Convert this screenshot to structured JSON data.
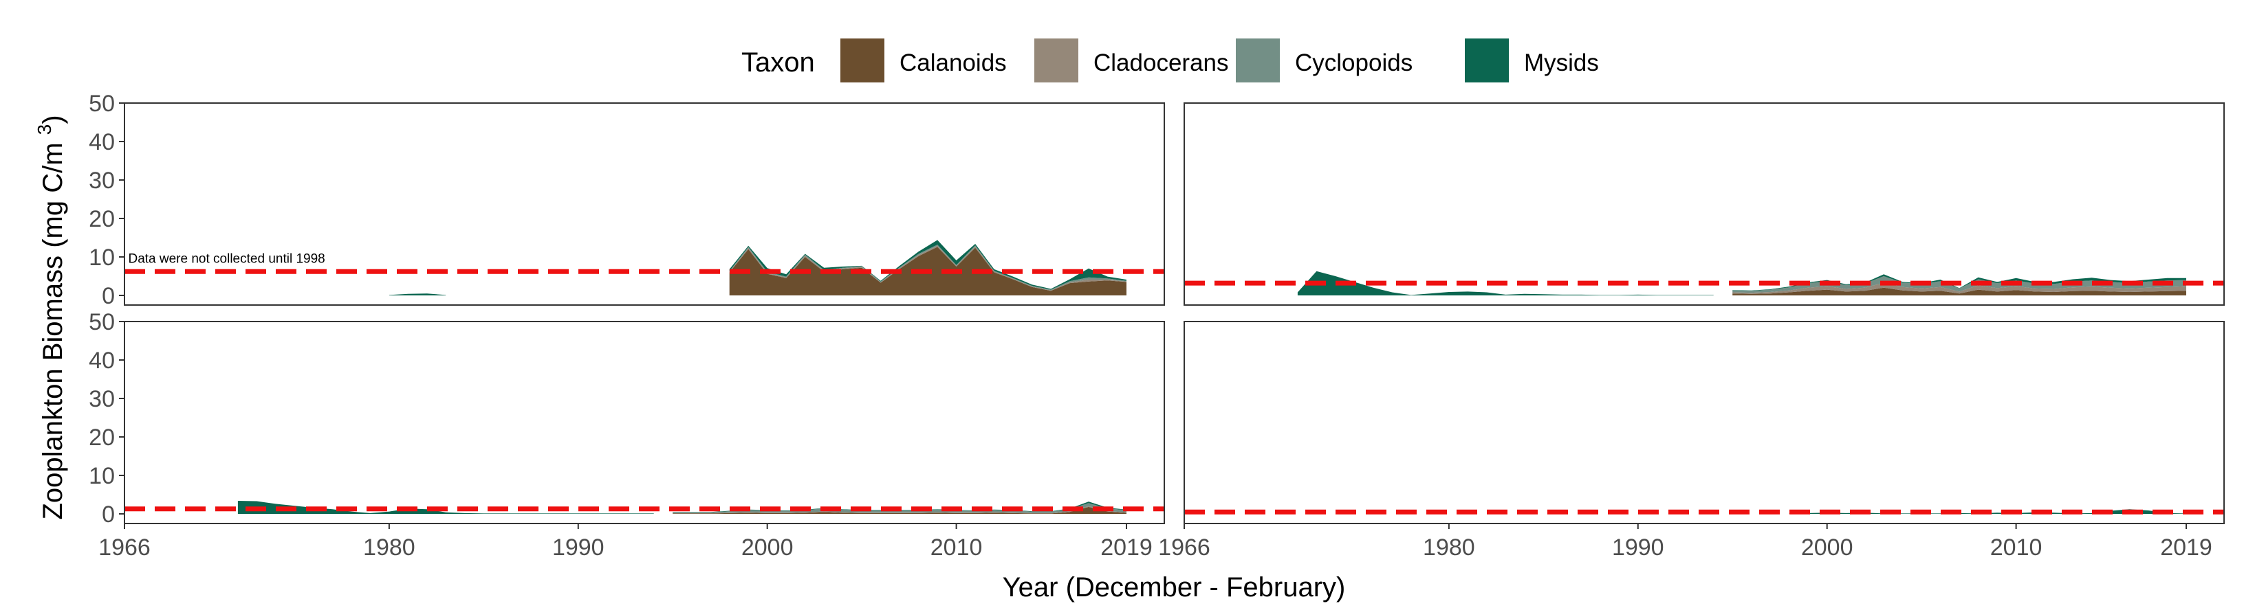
{
  "chart_data": {
    "type": "area",
    "stacked": true,
    "legend": {
      "title": "Taxon",
      "position": "top",
      "entries": [
        {
          "name": "Calanoids",
          "color": "#6B4E2E"
        },
        {
          "name": "Cladocerans",
          "color": "#958879"
        },
        {
          "name": "Cyclopoids",
          "color": "#738F86"
        },
        {
          "name": "Mysids",
          "color": "#0B6650"
        }
      ]
    },
    "xlabel": "Year (December - February)",
    "ylabel": "Zooplankton Biomass (mg C/m",
    "ylabel_superscript": "3",
    "ylabel_close": ")",
    "xlim": [
      1966,
      2021
    ],
    "ylim": [
      -2.5,
      50
    ],
    "x_ticks": [
      "1966",
      "1980",
      "1990",
      "2000",
      "2010",
      "2019"
    ],
    "x_tick_values": [
      1966,
      1980,
      1990,
      2000,
      2010,
      2019
    ],
    "y_ticks": [
      "0",
      "10",
      "20",
      "30",
      "40",
      "50"
    ],
    "y_tick_values": [
      0,
      10,
      20,
      30,
      40,
      50
    ],
    "grid": false,
    "reference_line": {
      "style": "dashed",
      "color": "#EE1111"
    },
    "panels": [
      {
        "position": "top-left",
        "reference_value": 6.2,
        "annotation": {
          "text": "Data were not collected until 1998",
          "x": 1966.2,
          "y": 8.5
        },
        "segments": [
          {
            "x": [
              1980,
              1981,
              1982,
              1983
            ],
            "calanoids": [
              0,
              0,
              0,
              0
            ],
            "cladocerans": [
              0,
              0,
              0,
              0
            ],
            "cyclopoids": [
              0,
              0,
              0,
              0
            ],
            "mysids": [
              0.1,
              0.4,
              0.5,
              0.1
            ]
          },
          {
            "x": [
              1998,
              1999,
              2000,
              2001,
              2002,
              2003,
              2004,
              2005,
              2006,
              2007,
              2008,
              2009,
              2010,
              2011,
              2012,
              2013,
              2014,
              2015,
              2016,
              2017,
              2018,
              2019
            ],
            "calanoids": [
              6.0,
              12.0,
              5.6,
              4.5,
              10.0,
              6.2,
              6.8,
              7.2,
              3.3,
              6.9,
              10.2,
              12.6,
              7.5,
              12.4,
              6.0,
              4.2,
              2.2,
              1.2,
              3.2,
              3.6,
              3.9,
              3.5
            ],
            "cladocerans": [
              0.1,
              0.3,
              0.2,
              0.2,
              0.3,
              0.2,
              0.2,
              0.2,
              0.1,
              0.2,
              0.3,
              0.3,
              0.2,
              0.3,
              0.2,
              0.1,
              0.1,
              0.1,
              0.2,
              0.5,
              0.2,
              0.1
            ],
            "cyclopoids": [
              0.2,
              0.3,
              0.3,
              0.2,
              0.3,
              0.2,
              0.2,
              0.2,
              0.2,
              0.2,
              0.3,
              0.3,
              0.2,
              0.3,
              0.2,
              0.2,
              0.2,
              0.2,
              0.3,
              0.6,
              0.3,
              0.2
            ],
            "mysids": [
              0.5,
              0.3,
              1.0,
              0.6,
              0.2,
              0.6,
              0.3,
              0.1,
              0.2,
              0.4,
              0.6,
              1.2,
              1.2,
              0.4,
              0.4,
              0.4,
              0.3,
              0.2,
              0.5,
              2.3,
              0.5,
              0.3
            ]
          }
        ]
      },
      {
        "position": "top-right",
        "reference_value": 3.2,
        "annotation": null,
        "segments": [
          {
            "x": [
              1972,
              1973,
              1974,
              1975,
              1976,
              1977,
              1978,
              1979,
              1980,
              1981,
              1982,
              1983,
              1984,
              1985,
              1986,
              1987,
              1988,
              1989,
              1990,
              1991,
              1992,
              1993,
              1994
            ],
            "calanoids": [
              0,
              0,
              0,
              0,
              0,
              0,
              0,
              0,
              0,
              0,
              0,
              0,
              0,
              0,
              0,
              0,
              0,
              0,
              0,
              0,
              0,
              0,
              0
            ],
            "cladocerans": [
              0,
              0,
              0,
              0,
              0,
              0,
              0,
              0,
              0,
              0,
              0,
              0,
              0,
              0,
              0,
              0,
              0,
              0,
              0,
              0,
              0,
              0,
              0
            ],
            "cyclopoids": [
              0,
              0,
              0,
              0,
              0,
              0,
              0,
              0,
              0,
              0,
              0,
              0,
              0,
              0,
              0,
              0,
              0,
              0,
              0,
              0,
              0,
              0,
              0
            ],
            "mysids": [
              0.8,
              6.3,
              5.0,
              3.5,
              2.0,
              0.8,
              0.1,
              0.5,
              0.9,
              1.0,
              0.8,
              0.2,
              0.4,
              0.3,
              0.2,
              0.2,
              0.1,
              0.1,
              0.2,
              0.1,
              0.1,
              0.1,
              0.1
            ]
          },
          {
            "x": [
              1995,
              1996,
              1997,
              1998,
              1999,
              2000,
              2001,
              2002,
              2003,
              2004,
              2005,
              2006,
              2007,
              2008,
              2009,
              2010,
              2011,
              2012,
              2013,
              2014,
              2015,
              2016,
              2017,
              2018,
              2019
            ],
            "calanoids": [
              0.5,
              0.4,
              0.5,
              0.8,
              1.2,
              1.5,
              1.0,
              1.2,
              2.0,
              1.3,
              1.0,
              1.2,
              0.5,
              1.5,
              1.0,
              1.4,
              1.0,
              0.9,
              1.1,
              1.2,
              1.0,
              0.9,
              1.0,
              1.1,
              1.2
            ],
            "cladocerans": [
              0.3,
              0.3,
              0.4,
              0.5,
              0.8,
              0.9,
              0.7,
              0.8,
              1.3,
              0.9,
              0.8,
              1.0,
              0.5,
              1.1,
              0.9,
              1.0,
              0.8,
              0.8,
              1.0,
              1.1,
              1.0,
              0.9,
              1.0,
              1.1,
              1.2
            ],
            "cyclopoids": [
              0.5,
              0.5,
              0.6,
              0.8,
              1.2,
              1.3,
              1.0,
              1.1,
              1.7,
              1.1,
              1.2,
              1.5,
              0.8,
              1.6,
              1.3,
              1.5,
              1.3,
              1.3,
              1.5,
              1.6,
              1.5,
              1.4,
              1.6,
              1.7,
              1.6
            ],
            "mysids": [
              0.1,
              0.1,
              0.1,
              0.2,
              0.2,
              0.3,
              0.2,
              0.2,
              0.5,
              0.2,
              0.2,
              0.4,
              0.1,
              0.5,
              0.3,
              0.6,
              0.4,
              0.5,
              0.6,
              0.7,
              0.5,
              0.5,
              0.5,
              0.6,
              0.5
            ]
          }
        ]
      },
      {
        "position": "bottom-left",
        "reference_value": 1.3,
        "annotation": null,
        "segments": [
          {
            "x": [
              1972,
              1973,
              1974,
              1975,
              1976,
              1977,
              1978,
              1979,
              1980,
              1981,
              1982,
              1983,
              1984,
              1985,
              1986,
              1987,
              1988,
              1989,
              1990,
              1991,
              1992,
              1993,
              1994
            ],
            "calanoids": [
              0,
              0,
              0,
              0,
              0,
              0,
              0,
              0,
              0,
              0,
              0,
              0,
              0,
              0,
              0,
              0,
              0,
              0,
              0,
              0,
              0,
              0,
              0
            ],
            "cladocerans": [
              0,
              0,
              0,
              0,
              0,
              0,
              0,
              0,
              0,
              0,
              0,
              0,
              0,
              0,
              0,
              0,
              0,
              0,
              0,
              0,
              0,
              0,
              0
            ],
            "cyclopoids": [
              0,
              0,
              0,
              0,
              0,
              0,
              0,
              0,
              0,
              0,
              0,
              0,
              0,
              0,
              0,
              0,
              0,
              0,
              0,
              0,
              0,
              0,
              0
            ],
            "mysids": [
              3.4,
              3.3,
              2.6,
              2.1,
              1.6,
              1.2,
              0.6,
              0.2,
              0.6,
              1.4,
              1.2,
              0.4,
              0.2,
              0.1,
              0.1,
              0.1,
              0.1,
              0.1,
              0.1,
              0.1,
              0.1,
              0.1,
              0.1
            ]
          },
          {
            "x": [
              1995,
              1996,
              1997,
              1998,
              1999,
              2000,
              2001,
              2002,
              2003,
              2004,
              2005,
              2006,
              2007,
              2008,
              2009,
              2010,
              2011,
              2012,
              2013,
              2014,
              2015,
              2016,
              2017,
              2018,
              2019
            ],
            "calanoids": [
              0.1,
              0.1,
              0.1,
              0.2,
              0.3,
              0.2,
              0.2,
              0.3,
              0.5,
              0.3,
              0.2,
              0.2,
              0.2,
              0.2,
              0.3,
              0.2,
              0.2,
              0.3,
              0.2,
              0.1,
              0.1,
              0.5,
              1.8,
              0.6,
              0.3
            ],
            "cladocerans": [
              0.1,
              0.1,
              0.1,
              0.1,
              0.1,
              0.1,
              0.1,
              0.1,
              0.1,
              0.1,
              0.1,
              0.1,
              0.1,
              0.1,
              0.1,
              0.1,
              0.1,
              0.1,
              0.1,
              0.1,
              0.1,
              0.1,
              0.2,
              0.1,
              0.1
            ],
            "cyclopoids": [
              0.2,
              0.2,
              0.2,
              0.4,
              0.6,
              0.6,
              0.5,
              0.6,
              0.8,
              0.7,
              0.6,
              0.6,
              0.6,
              0.6,
              0.7,
              0.6,
              0.5,
              0.6,
              0.6,
              0.4,
              0.4,
              0.6,
              0.8,
              0.7,
              0.6
            ],
            "mysids": [
              0.1,
              0.1,
              0.1,
              0.1,
              0.1,
              0.1,
              0.1,
              0.1,
              0.1,
              0.1,
              0.1,
              0.1,
              0.1,
              0.1,
              0.1,
              0.1,
              0.1,
              0.1,
              0.1,
              0.1,
              0.1,
              0.2,
              0.4,
              0.2,
              0.1
            ]
          }
        ]
      },
      {
        "position": "bottom-right",
        "reference_value": 0.5,
        "annotation": null,
        "segments": [
          {
            "x": [
              1998,
              1999,
              2000,
              2001,
              2002,
              2003,
              2004,
              2005,
              2006,
              2007,
              2008,
              2009,
              2010,
              2011,
              2012,
              2013,
              2014,
              2015,
              2016,
              2017,
              2018,
              2019
            ],
            "calanoids": [
              0,
              0,
              0,
              0,
              0,
              0,
              0,
              0,
              0,
              0,
              0,
              0,
              0,
              0,
              0,
              0,
              0,
              0,
              0,
              0,
              0,
              0
            ],
            "cladocerans": [
              0,
              0,
              0,
              0,
              0,
              0,
              0,
              0,
              0,
              0,
              0,
              0,
              0,
              0,
              0,
              0,
              0,
              0,
              0,
              0,
              0,
              0
            ],
            "cyclopoids": [
              0,
              0,
              0,
              0,
              0,
              0,
              0,
              0,
              0,
              0,
              0,
              0,
              0,
              0,
              0,
              0,
              0,
              0,
              0,
              0,
              0,
              0
            ],
            "mysids": [
              0.1,
              0.2,
              0.3,
              0.2,
              0.3,
              0.1,
              0.1,
              0.1,
              0.1,
              0.2,
              0.1,
              0.3,
              0.2,
              0.4,
              0.3,
              0.1,
              0.2,
              0.8,
              1.2,
              0.9,
              0.2,
              0.1
            ]
          }
        ]
      }
    ]
  }
}
